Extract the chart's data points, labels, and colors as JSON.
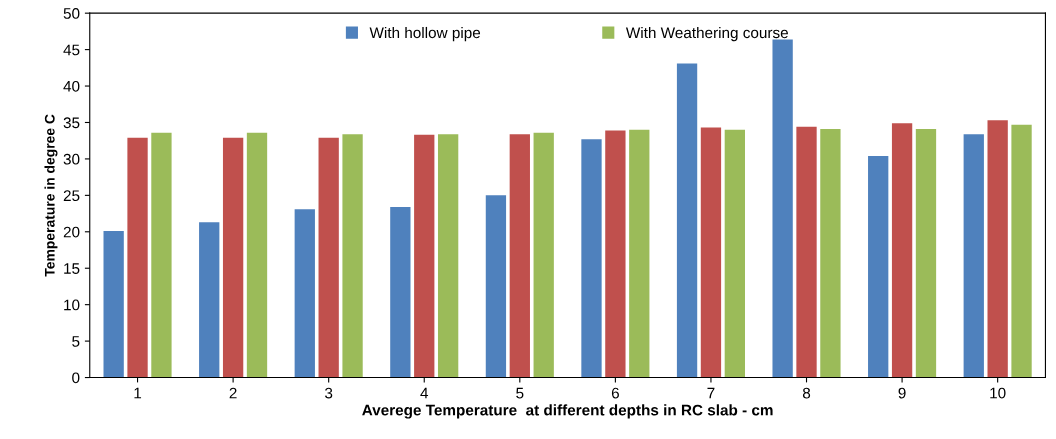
{
  "chart_data": {
    "type": "bar",
    "xlabel": "Averege Temperature  at different depths in RC slab - cm",
    "ylabel": "Temperature in degree C",
    "categories": [
      "1",
      "2",
      "3",
      "4",
      "5",
      "6",
      "7",
      "8",
      "9",
      "10"
    ],
    "series": [
      {
        "name": "With hollow pipe",
        "color": "#4f81bd",
        "values": [
          20.1,
          21.3,
          23.1,
          23.4,
          25.0,
          32.7,
          43.1,
          46.4,
          30.4,
          33.4
        ]
      },
      {
        "color": "#c0504d",
        "values": [
          32.9,
          32.9,
          32.9,
          33.3,
          33.4,
          33.9,
          34.3,
          34.4,
          34.9,
          35.3
        ]
      },
      {
        "name": "With Weathering course",
        "color": "#9bbb59",
        "values": [
          33.6,
          33.6,
          33.4,
          33.4,
          33.6,
          34.0,
          34.0,
          34.1,
          34.1,
          34.7
        ]
      }
    ],
    "ylim": [
      0,
      50
    ],
    "yticks": [
      0,
      5,
      10,
      15,
      20,
      25,
      30,
      35,
      40,
      45,
      50
    ],
    "grid": false,
    "legend": "top"
  }
}
